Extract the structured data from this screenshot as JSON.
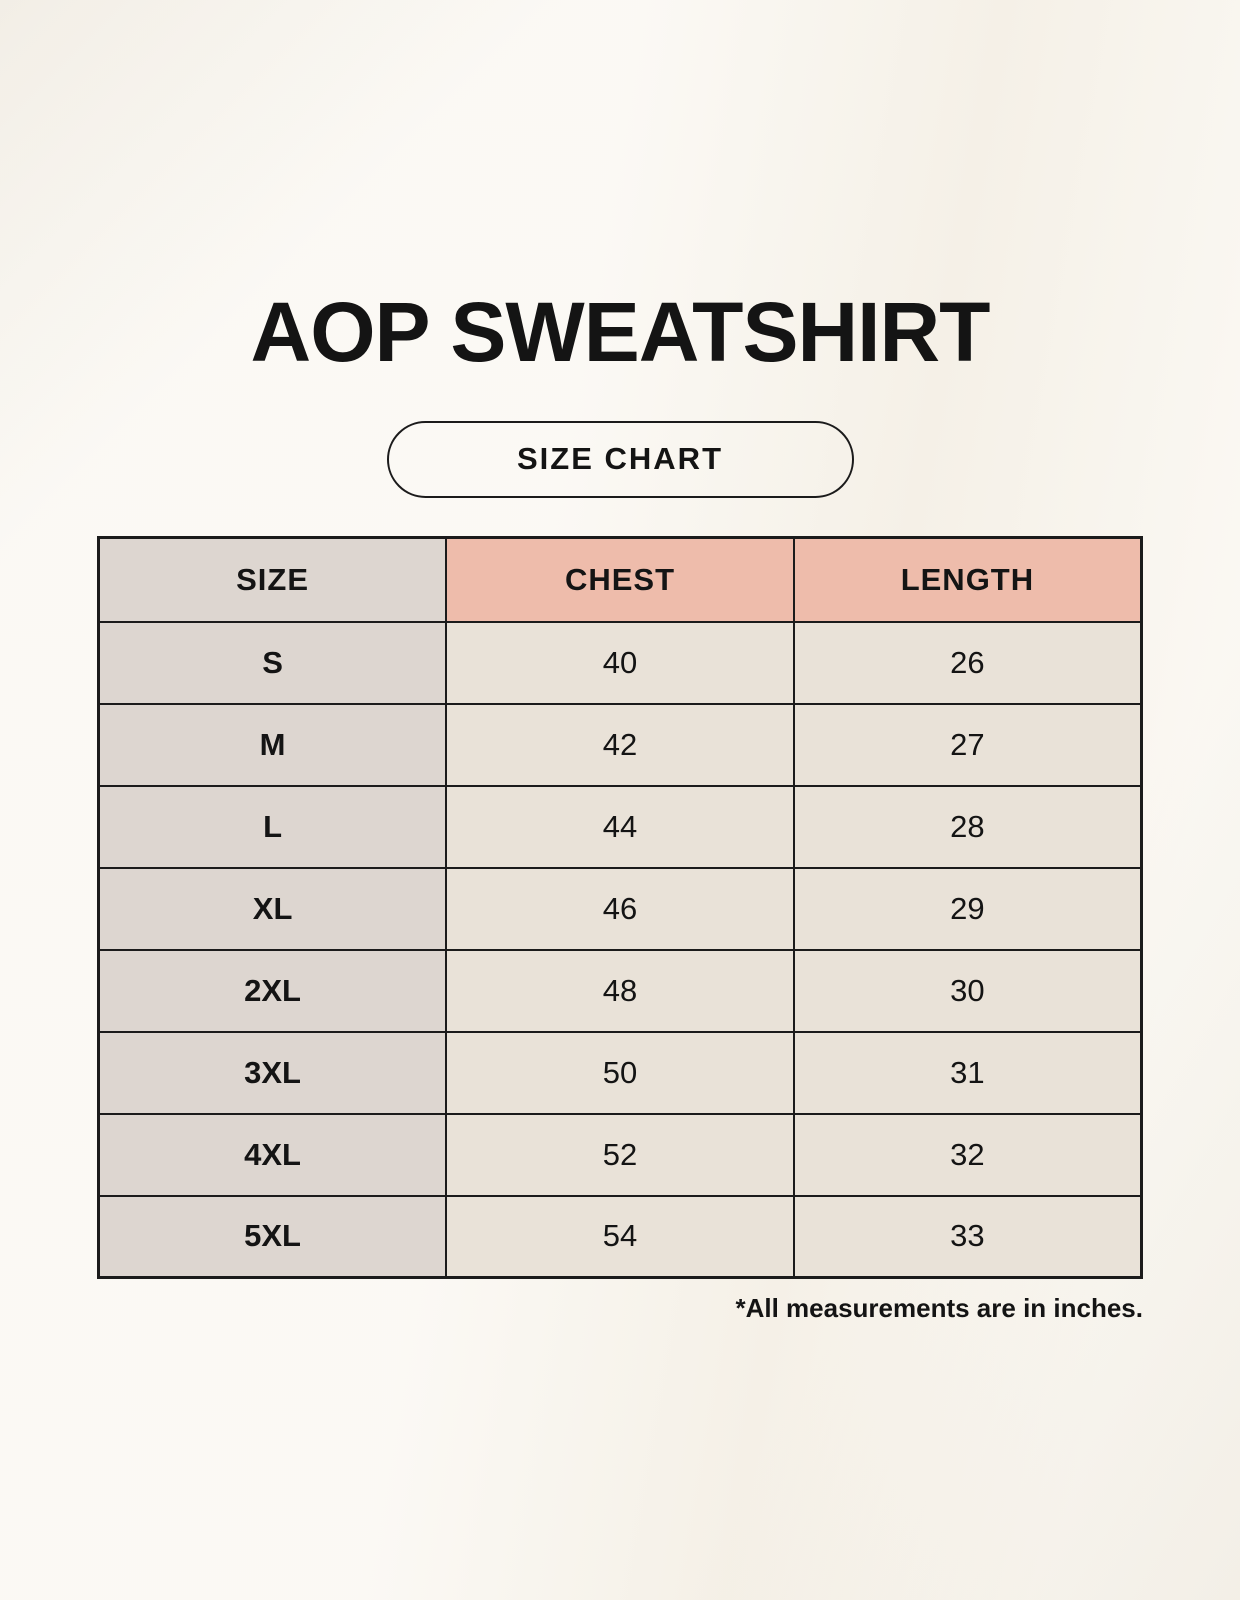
{
  "page": {
    "title": "AOP SWEATSHIRT",
    "badge_label": "SIZE CHART",
    "footnote": "*All measurements are in inches."
  },
  "colors": {
    "page_bg": "#f8f4ec",
    "accent_pink": "#eebcab",
    "size_col_bg": "#ddd6d0",
    "cell_bg": "#e9e2d8",
    "border": "#1b1b1b",
    "text": "#141414"
  },
  "chart_data": {
    "type": "table",
    "title": "AOP SWEATSHIRT",
    "subtitle": "SIZE CHART",
    "columns": [
      "SIZE",
      "CHEST",
      "LENGTH"
    ],
    "rows": [
      {
        "size": "S",
        "chest": "40",
        "length": "26"
      },
      {
        "size": "M",
        "chest": "42",
        "length": "27"
      },
      {
        "size": "L",
        "chest": "44",
        "length": "28"
      },
      {
        "size": "XL",
        "chest": "46",
        "length": "29"
      },
      {
        "size": "2XL",
        "chest": "48",
        "length": "30"
      },
      {
        "size": "3XL",
        "chest": "50",
        "length": "31"
      },
      {
        "size": "4XL",
        "chest": "52",
        "length": "32"
      },
      {
        "size": "5XL",
        "chest": "54",
        "length": "33"
      }
    ],
    "units": "inches",
    "note": "*All measurements are in inches.",
    "layout": {
      "grid": true,
      "header_accent_columns": [
        "CHEST",
        "LENGTH"
      ]
    }
  }
}
